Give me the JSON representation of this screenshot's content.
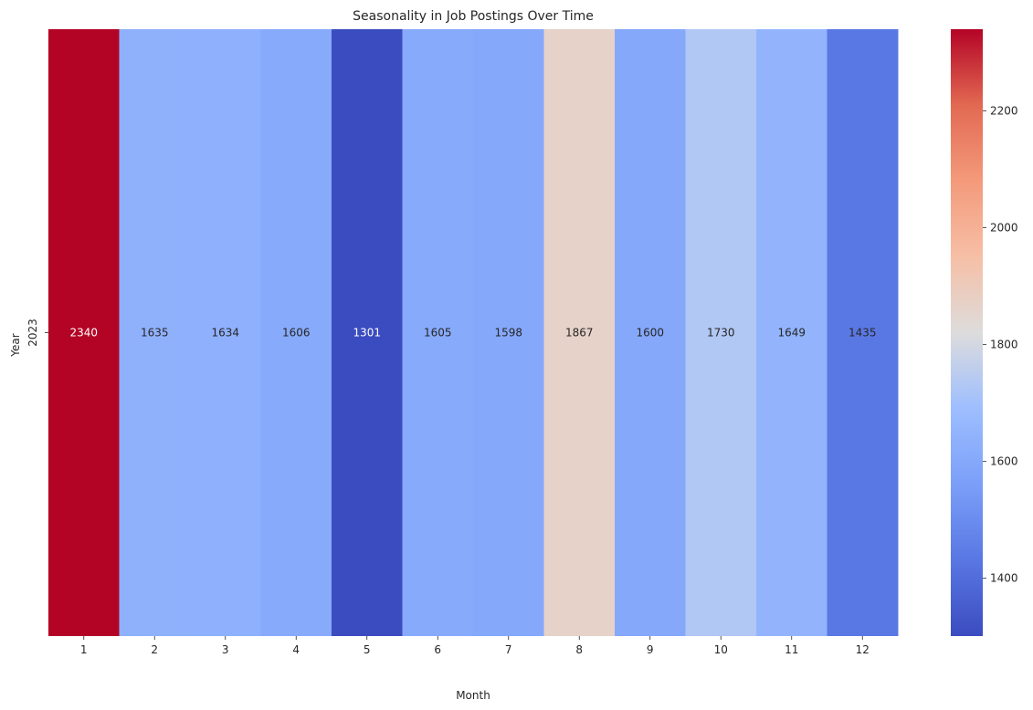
{
  "chart_data": {
    "type": "heatmap",
    "title": "Seasonality in Job Postings Over Time",
    "xlabel": "Month",
    "ylabel": "Year",
    "x_categories": [
      "1",
      "2",
      "3",
      "4",
      "5",
      "6",
      "7",
      "8",
      "9",
      "10",
      "11",
      "12"
    ],
    "y_categories": [
      "2023"
    ],
    "values": [
      [
        2340,
        1635,
        1634,
        1606,
        1301,
        1605,
        1598,
        1867,
        1600,
        1730,
        1649,
        1435
      ]
    ],
    "colormap": "coolwarm",
    "color_range": [
      1301,
      2340
    ],
    "annotations": true,
    "colorbar": {
      "ticks": [
        1400,
        1600,
        1800,
        2000,
        2200
      ],
      "tick_labels": [
        "1400",
        "1600",
        "1800",
        "2000",
        "2200"
      ]
    },
    "grid": false
  }
}
